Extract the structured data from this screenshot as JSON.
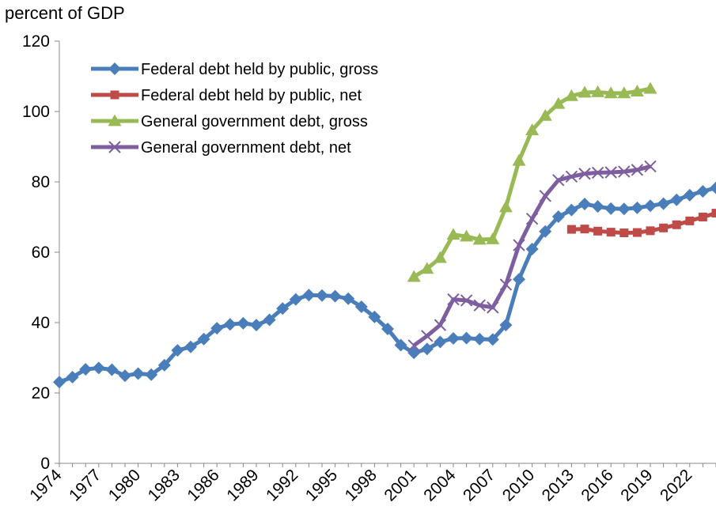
{
  "chart_data": {
    "type": "line",
    "ylabel": "percent of GDP",
    "xlabel": "",
    "ylim": [
      0,
      120
    ],
    "yticks": [
      0,
      20,
      40,
      60,
      80,
      100,
      120
    ],
    "xlim": [
      1974,
      2024
    ],
    "xticks": [
      "1974",
      "1977",
      "1980",
      "1983",
      "1986",
      "1989",
      "1992",
      "1995",
      "1998",
      "2001",
      "2004",
      "2007",
      "2010",
      "2013",
      "2016",
      "2019",
      "2022"
    ],
    "grid": false,
    "legend_position": "top-left",
    "series": [
      {
        "name": "Federal debt held by public, gross",
        "color": "#4a7ebb",
        "marker": "diamond",
        "x": [
          1974,
          1975,
          1976,
          1977,
          1978,
          1979,
          1980,
          1981,
          1982,
          1983,
          1984,
          1985,
          1986,
          1987,
          1988,
          1989,
          1990,
          1991,
          1992,
          1993,
          1994,
          1995,
          1996,
          1997,
          1998,
          1999,
          2000,
          2001,
          2002,
          2003,
          2004,
          2005,
          2006,
          2007,
          2008,
          2009,
          2010,
          2011,
          2012,
          2013,
          2014,
          2015,
          2016,
          2017,
          2018,
          2019,
          2020,
          2021,
          2022,
          2023,
          2024
        ],
        "y": [
          23.1,
          24.5,
          26.7,
          27.1,
          26.6,
          24.9,
          25.5,
          25.2,
          27.9,
          32.1,
          33.1,
          35.3,
          38.4,
          39.5,
          39.8,
          39.3,
          40.8,
          44.0,
          46.6,
          47.8,
          47.7,
          47.5,
          46.8,
          44.5,
          41.6,
          38.2,
          33.6,
          31.4,
          32.5,
          34.5,
          35.5,
          35.6,
          35.3,
          35.2,
          39.3,
          52.3,
          60.9,
          65.9,
          70.1,
          72.0,
          73.7,
          73.0,
          72.4,
          72.3,
          72.6,
          73.2,
          73.8,
          74.9,
          76.2,
          77.3,
          78.3
        ]
      },
      {
        "name": "Federal debt held by public, net",
        "color": "#be4b48",
        "marker": "square",
        "x": [
          2013,
          2014,
          2015,
          2016,
          2017,
          2018,
          2019,
          2020,
          2021,
          2022,
          2023,
          2024
        ],
        "y": [
          66.5,
          66.6,
          66.0,
          65.7,
          65.5,
          65.6,
          66.1,
          66.9,
          67.8,
          68.9,
          70.0,
          71.1
        ]
      },
      {
        "name": "General government debt, gross",
        "color": "#98b954",
        "marker": "triangle",
        "x": [
          2001,
          2002,
          2003,
          2004,
          2005,
          2006,
          2007,
          2008,
          2009,
          2010,
          2011,
          2012,
          2013,
          2014,
          2015,
          2016,
          2017,
          2018,
          2019
        ],
        "y": [
          53.0,
          55.3,
          58.4,
          65.0,
          64.5,
          63.6,
          63.7,
          72.8,
          86.0,
          94.7,
          98.8,
          102.2,
          104.4,
          105.4,
          105.5,
          105.2,
          105.2,
          105.7,
          106.5
        ]
      },
      {
        "name": "General government debt, net",
        "color": "#7d5fa0",
        "marker": "x",
        "x": [
          2001,
          2002,
          2003,
          2004,
          2005,
          2006,
          2007,
          2008,
          2009,
          2010,
          2011,
          2012,
          2013,
          2014,
          2015,
          2016,
          2017,
          2018,
          2019
        ],
        "y": [
          33.5,
          36.2,
          39.3,
          46.6,
          46.3,
          44.9,
          44.3,
          50.8,
          62.0,
          69.5,
          76.0,
          80.5,
          81.5,
          82.3,
          82.6,
          82.7,
          82.9,
          83.4,
          84.4
        ]
      }
    ]
  }
}
